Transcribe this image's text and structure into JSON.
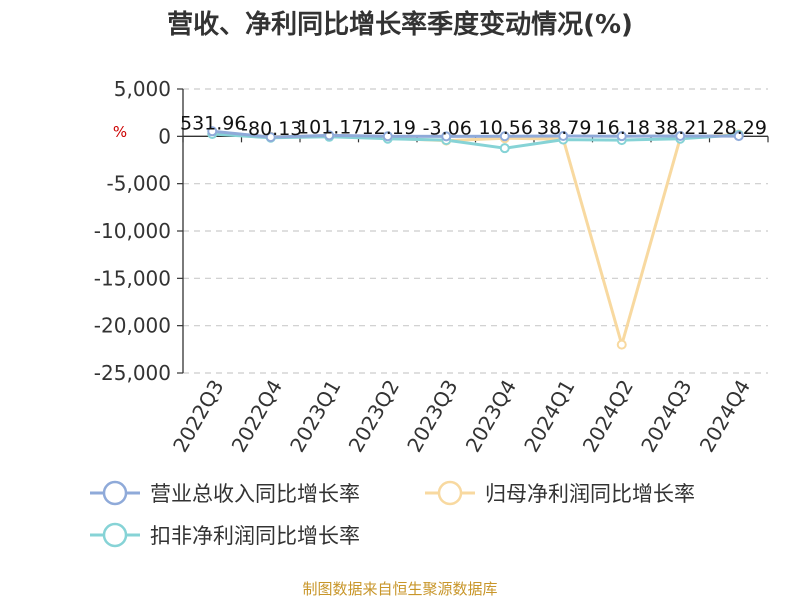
{
  "chart_data": {
    "type": "line",
    "title": "营收、净利同比增长率季度变动情况(%)",
    "unit_label": "%",
    "categories": [
      "2022Q3",
      "2022Q4",
      "2023Q1",
      "2023Q2",
      "2023Q3",
      "2023Q4",
      "2024Q1",
      "2024Q2",
      "2024Q3",
      "2024Q4"
    ],
    "ylim": [
      -25000,
      5000
    ],
    "yticks": [
      5000,
      0,
      -5000,
      -10000,
      -15000,
      -20000,
      -25000
    ],
    "ytick_labels": [
      "5,000",
      "0",
      "-5,000",
      "-10,000",
      "-15,000",
      "-20,000",
      "-25,000"
    ],
    "grid": true,
    "legend_position": "bottom",
    "series": [
      {
        "name": "营业总收入同比增长率",
        "color": "#8faad9",
        "values": [
          531.96,
          -80.13,
          101.17,
          12.19,
          -3.06,
          10.56,
          38.79,
          16.18,
          38.21,
          28.29
        ]
      },
      {
        "name": "归母净利润同比增长率",
        "color": "#f8d9a0",
        "values": [
          300,
          -50,
          40,
          -200,
          -450,
          -200,
          -300,
          -22000,
          -150,
          200
        ]
      },
      {
        "name": "扣非净利润同比增长率",
        "color": "#86d3d6",
        "values": [
          250,
          -150,
          -50,
          -250,
          -400,
          -1250,
          -350,
          -400,
          -250,
          150
        ]
      }
    ],
    "data_labels": [
      "531.96",
      "-80.13",
      "101.17",
      "12.19",
      "-3.06",
      "10.56",
      "38.79",
      "16.18",
      "38.21",
      "28.29"
    ],
    "source": "制图数据来自恒生聚源数据库"
  }
}
